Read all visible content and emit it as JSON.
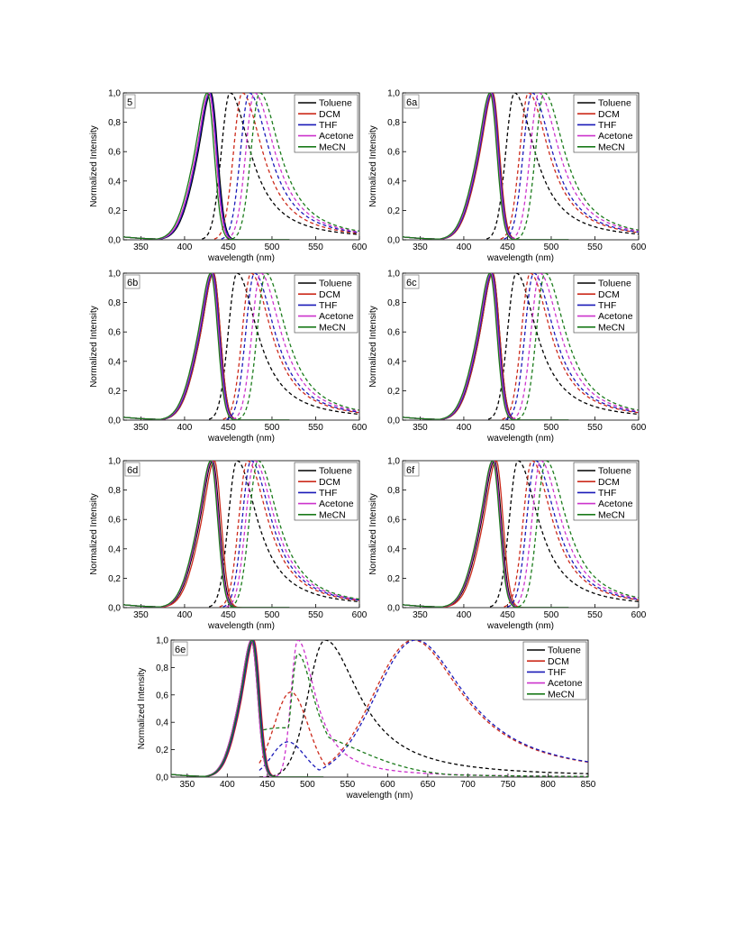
{
  "figure": {
    "legend_entries": [
      "Toluene",
      "DCM",
      "THF",
      "Acetone",
      "MeCN"
    ],
    "series_colors": [
      "#000000",
      "#cc2a1b",
      "#1a1ab8",
      "#cc33cc",
      "#1a7a1a"
    ]
  },
  "chart_data": [
    {
      "type": "line",
      "panel": "5",
      "xlabel": "wavelength (nm)",
      "ylabel": "Normalized Intensity",
      "xlim": [
        330,
        600
      ],
      "ylim": [
        0,
        1.0
      ],
      "xticks": [
        350,
        400,
        450,
        500,
        550,
        600
      ],
      "yticks": [
        "0,0",
        "0,2",
        "0,4",
        "0,6",
        "0,8",
        "1,0"
      ],
      "legend_position": "top-right",
      "absorption_peaks": [
        430,
        428,
        429,
        428,
        426
      ],
      "emission_peaks": [
        452,
        466,
        474,
        480,
        486
      ]
    },
    {
      "type": "line",
      "panel": "6a",
      "xlabel": "wavelength (nm)",
      "ylabel": "Normalized Intensity",
      "xlim": [
        330,
        600
      ],
      "ylim": [
        0,
        1.0
      ],
      "xticks": [
        350,
        400,
        450,
        500,
        550,
        600
      ],
      "yticks": [
        "0,0",
        "0,2",
        "0,4",
        "0,6",
        "0,8",
        "1,0"
      ],
      "legend_position": "top-right",
      "absorption_peaks": [
        432,
        433,
        432,
        431,
        430
      ],
      "emission_peaks": [
        458,
        474,
        478,
        486,
        492
      ]
    },
    {
      "type": "line",
      "panel": "6b",
      "xlabel": "wavelength (nm)",
      "ylabel": "Normalized Intensity",
      "xlim": [
        330,
        600
      ],
      "ylim": [
        0,
        1.0
      ],
      "xticks": [
        350,
        400,
        450,
        500,
        550,
        600
      ],
      "yticks": [
        "0,0",
        "0,2",
        "0,4",
        "0,6",
        "0,8",
        "1,0"
      ],
      "legend_position": "top-right",
      "absorption_peaks": [
        433,
        433,
        432,
        431,
        430
      ],
      "emission_peaks": [
        460,
        476,
        480,
        487,
        493
      ]
    },
    {
      "type": "line",
      "panel": "6c",
      "xlabel": "wavelength (nm)",
      "ylabel": "Normalized Intensity",
      "xlim": [
        330,
        600
      ],
      "ylim": [
        0,
        1.0
      ],
      "xticks": [
        350,
        400,
        450,
        500,
        550,
        600
      ],
      "yticks": [
        "0,0",
        "0,2",
        "0,4",
        "0,6",
        "0,8",
        "1,0"
      ],
      "legend_position": "top-right",
      "absorption_peaks": [
        433,
        433,
        432,
        431,
        430
      ],
      "emission_peaks": [
        460,
        476,
        480,
        487,
        493
      ]
    },
    {
      "type": "line",
      "panel": "6d",
      "xlabel": "wavelength (nm)",
      "ylabel": "Normalized Intensity",
      "xlim": [
        330,
        600
      ],
      "ylim": [
        0,
        1.0
      ],
      "xticks": [
        350,
        400,
        450,
        500,
        550,
        600
      ],
      "yticks": [
        "0,0",
        "0,2",
        "0,4",
        "0,6",
        "0,8",
        "1,0"
      ],
      "legend_position": "top-right",
      "absorption_peaks": [
        432,
        434,
        431,
        431,
        430
      ],
      "emission_peaks": [
        460,
        472,
        476,
        480,
        484
      ]
    },
    {
      "type": "line",
      "panel": "6f",
      "xlabel": "wavelength (nm)",
      "ylabel": "Normalized Intensity",
      "xlim": [
        330,
        600
      ],
      "ylim": [
        0,
        1.0
      ],
      "xticks": [
        350,
        400,
        450,
        500,
        550,
        600
      ],
      "yticks": [
        "0,0",
        "0,2",
        "0,4",
        "0,6",
        "0,8",
        "1,0"
      ],
      "legend_position": "top-right",
      "absorption_peaks": [
        435,
        437,
        434,
        434,
        433
      ],
      "emission_peaks": [
        462,
        478,
        482,
        488,
        494
      ]
    },
    {
      "type": "line",
      "panel": "6e",
      "xlabel": "wavelength (nm)",
      "ylabel": "Normalized Intensity",
      "xlim": [
        330,
        850
      ],
      "ylim": [
        0,
        1.0
      ],
      "xticks": [
        350,
        400,
        450,
        500,
        550,
        600,
        650,
        700,
        750,
        800,
        850
      ],
      "yticks": [
        "0,0",
        "0,2",
        "0,4",
        "0,6",
        "0,8",
        "1,0"
      ],
      "legend_position": "top-right",
      "absorption_peaks": [
        430,
        433,
        432,
        430,
        431
      ],
      "emission_peaks": [
        522,
        632,
        635,
        488,
        488
      ]
    }
  ]
}
